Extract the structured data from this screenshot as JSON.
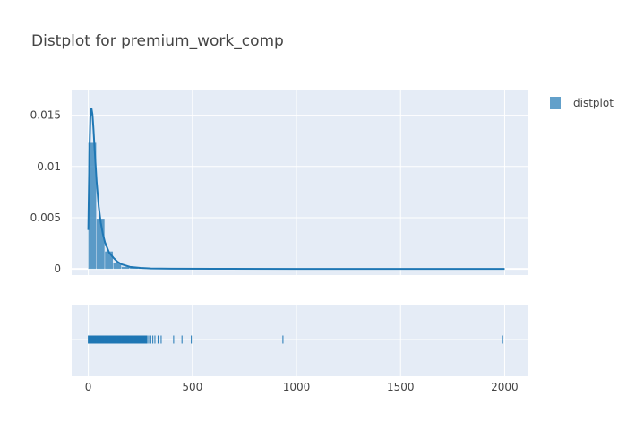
{
  "chart_data": {
    "type": "histogram",
    "title": "Distplot for premium_work_comp",
    "colors": {
      "series": "#1f77b4",
      "plot_bg": "#e5ecf6",
      "grid": "#ffffff"
    },
    "series_name": "distplot",
    "legend_position": "top-right",
    "x_axis": {
      "range": [
        -80,
        2110
      ],
      "ticks": [
        0,
        500,
        1000,
        1500,
        2000
      ],
      "tick_labels": [
        "0",
        "500",
        "1000",
        "1500",
        "2000"
      ]
    },
    "y_axis": {
      "range": [
        -0.0006,
        0.0175
      ],
      "ticks": [
        0,
        0.005,
        0.01,
        0.015
      ],
      "tick_labels": [
        "0",
        "0.005",
        "0.01",
        "0.015"
      ]
    },
    "histogram": {
      "bin_width": 40,
      "bins": [
        {
          "start": 0,
          "end": 40,
          "density": 0.0123
        },
        {
          "start": 40,
          "end": 80,
          "density": 0.0049
        },
        {
          "start": 80,
          "end": 120,
          "density": 0.0017
        },
        {
          "start": 120,
          "end": 160,
          "density": 0.0006
        },
        {
          "start": 160,
          "end": 200,
          "density": 0.0002
        },
        {
          "start": 200,
          "end": 240,
          "density": 0.0001
        },
        {
          "start": 240,
          "end": 280,
          "density": 5e-05
        },
        {
          "start": 280,
          "end": 320,
          "density": 3e-05
        }
      ]
    },
    "kde_curve": {
      "x": [
        0,
        5,
        10,
        15,
        20,
        25,
        30,
        40,
        50,
        60,
        70,
        80,
        100,
        120,
        140,
        160,
        200,
        250,
        300,
        400,
        600,
        1000,
        1500,
        2000
      ],
      "y": [
        0.0038,
        0.011,
        0.0148,
        0.0157,
        0.0151,
        0.0136,
        0.0118,
        0.0085,
        0.0061,
        0.0045,
        0.0034,
        0.0026,
        0.0016,
        0.0011,
        0.0007,
        0.00045,
        0.0002,
        0.0001,
        5e-05,
        2e-05,
        1e-05,
        0.0,
        0.0,
        0.0
      ]
    },
    "rug": {
      "dense_range": [
        0,
        280
      ],
      "sparse_points": [
        282,
        290,
        300,
        310,
        320,
        335,
        350,
        410,
        450,
        495,
        935,
        1990
      ]
    }
  }
}
